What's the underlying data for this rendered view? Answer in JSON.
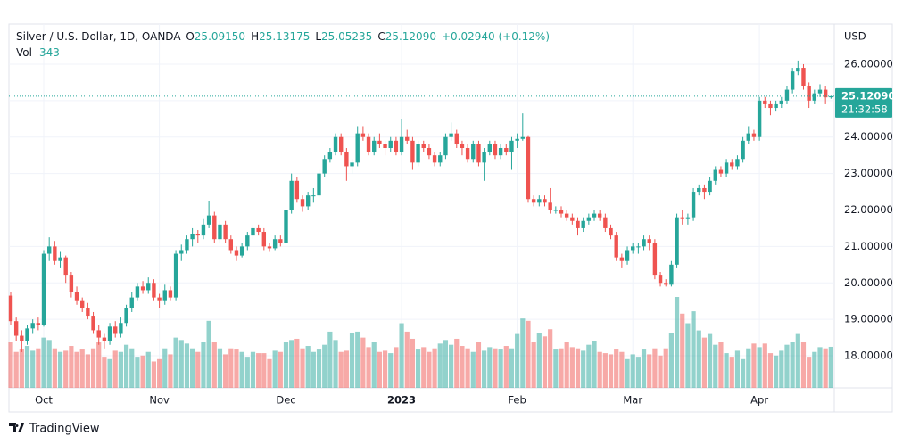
{
  "chart_data": {
    "type": "candlestick",
    "header": {
      "title": "Silver / U.S. Dollar, 1D, OANDA",
      "o_label": "O",
      "open": "25.09150",
      "h_label": "H",
      "high": "25.13175",
      "l_label": "L",
      "low": "25.05235",
      "c_label": "C",
      "close": "25.12090",
      "change": "+0.02940 (+0.12%)",
      "vol_label": "Vol"
    },
    "price_axis_label": "USD",
    "last_price": {
      "value": 25.1209,
      "label": "25.12090"
    },
    "countdown": "21:32:58",
    "brand": "TradingView",
    "up_color": "#26a69a",
    "down_color": "#ef5350",
    "grid": true,
    "ylim": [
      17.12,
      27.1
    ],
    "yticks": [
      {
        "value": 18,
        "label": "18.00000"
      },
      {
        "value": 19,
        "label": "19.00000"
      },
      {
        "value": 20,
        "label": "20.00000"
      },
      {
        "value": 21,
        "label": "21.00000"
      },
      {
        "value": 22,
        "label": "22.00000"
      },
      {
        "value": 23,
        "label": "23.00000"
      },
      {
        "value": 24,
        "label": "24.00000"
      },
      {
        "value": 25,
        "label": "25.00000"
      },
      {
        "value": 26,
        "label": "26.00000"
      }
    ],
    "categories": [
      null,
      null,
      null,
      null,
      null,
      null,
      "Oct",
      null,
      null,
      null,
      null,
      null,
      null,
      null,
      null,
      null,
      null,
      null,
      null,
      null,
      null,
      null,
      null,
      null,
      null,
      null,
      null,
      "Nov",
      null,
      null,
      null,
      null,
      null,
      null,
      null,
      null,
      null,
      null,
      null,
      null,
      null,
      null,
      null,
      null,
      null,
      null,
      null,
      null,
      null,
      null,
      "Dec",
      null,
      null,
      null,
      null,
      null,
      null,
      null,
      null,
      null,
      null,
      null,
      null,
      null,
      null,
      null,
      null,
      null,
      null,
      null,
      null,
      "2023",
      null,
      null,
      null,
      null,
      null,
      null,
      null,
      null,
      null,
      null,
      null,
      null,
      null,
      null,
      null,
      null,
      null,
      null,
      null,
      null,
      "Feb",
      null,
      null,
      null,
      null,
      null,
      null,
      null,
      null,
      null,
      null,
      null,
      null,
      null,
      null,
      null,
      null,
      null,
      null,
      null,
      null,
      "Mar",
      null,
      null,
      null,
      null,
      null,
      null,
      null,
      null,
      null,
      null,
      null,
      null,
      null,
      null,
      null,
      null,
      null,
      null,
      null,
      null,
      null,
      null,
      "Apr",
      null,
      null,
      null,
      null,
      null,
      null,
      null,
      null,
      null,
      null,
      null,
      null,
      null
    ],
    "ohlc": [
      [
        19.65,
        19.75,
        18.85,
        18.95
      ],
      [
        18.95,
        19.05,
        18.4,
        18.55
      ],
      [
        18.55,
        18.7,
        18.1,
        18.4
      ],
      [
        18.4,
        18.85,
        18.3,
        18.75
      ],
      [
        18.75,
        19.0,
        18.6,
        18.9
      ],
      [
        18.9,
        19.05,
        18.7,
        18.85
      ],
      [
        18.85,
        20.9,
        18.8,
        20.8
      ],
      [
        20.8,
        21.25,
        20.6,
        21.0
      ],
      [
        21.0,
        21.15,
        20.5,
        20.6
      ],
      [
        20.6,
        20.85,
        20.4,
        20.7
      ],
      [
        20.7,
        20.75,
        20.0,
        20.2
      ],
      [
        20.2,
        20.3,
        19.6,
        19.75
      ],
      [
        19.75,
        19.9,
        19.4,
        19.5
      ],
      [
        19.5,
        19.6,
        19.2,
        19.3
      ],
      [
        19.3,
        19.45,
        19.0,
        19.1
      ],
      [
        19.1,
        19.2,
        18.6,
        18.7
      ],
      [
        18.7,
        18.85,
        18.3,
        18.5
      ],
      [
        18.5,
        18.6,
        18.2,
        18.4
      ],
      [
        18.4,
        18.9,
        18.3,
        18.8
      ],
      [
        18.8,
        18.95,
        18.5,
        18.6
      ],
      [
        18.6,
        19.05,
        18.5,
        18.9
      ],
      [
        18.9,
        19.4,
        18.8,
        19.3
      ],
      [
        19.3,
        19.75,
        19.2,
        19.6
      ],
      [
        19.6,
        20.0,
        19.5,
        19.9
      ],
      [
        19.9,
        20.05,
        19.7,
        19.8
      ],
      [
        19.8,
        20.15,
        19.7,
        20.0
      ],
      [
        20.0,
        20.1,
        19.5,
        19.6
      ],
      [
        19.6,
        19.7,
        19.3,
        19.5
      ],
      [
        19.5,
        19.95,
        19.4,
        19.8
      ],
      [
        19.8,
        19.9,
        19.5,
        19.6
      ],
      [
        19.6,
        20.9,
        19.5,
        20.8
      ],
      [
        20.8,
        21.05,
        20.6,
        20.9
      ],
      [
        20.9,
        21.3,
        20.8,
        21.2
      ],
      [
        21.2,
        21.5,
        21.0,
        21.35
      ],
      [
        21.35,
        21.45,
        21.1,
        21.3
      ],
      [
        21.3,
        21.75,
        21.2,
        21.6
      ],
      [
        21.6,
        22.25,
        21.5,
        21.85
      ],
      [
        21.85,
        21.95,
        21.1,
        21.2
      ],
      [
        21.2,
        21.7,
        21.1,
        21.6
      ],
      [
        21.6,
        21.7,
        21.1,
        21.2
      ],
      [
        21.2,
        21.3,
        20.8,
        20.9
      ],
      [
        20.9,
        21.0,
        20.6,
        20.75
      ],
      [
        20.75,
        21.1,
        20.7,
        21.0
      ],
      [
        21.0,
        21.4,
        20.9,
        21.3
      ],
      [
        21.3,
        21.6,
        21.2,
        21.5
      ],
      [
        21.5,
        21.6,
        21.3,
        21.4
      ],
      [
        21.4,
        21.5,
        20.9,
        21.0
      ],
      [
        21.0,
        21.1,
        20.85,
        20.95
      ],
      [
        20.95,
        21.3,
        20.9,
        21.2
      ],
      [
        21.2,
        21.3,
        21.0,
        21.1
      ],
      [
        21.1,
        22.1,
        21.05,
        22.0
      ],
      [
        22.0,
        23.0,
        21.9,
        22.8
      ],
      [
        22.8,
        22.9,
        22.2,
        22.3
      ],
      [
        22.3,
        22.4,
        21.95,
        22.1
      ],
      [
        22.1,
        22.5,
        22.0,
        22.4
      ],
      [
        22.4,
        22.6,
        22.2,
        22.4
      ],
      [
        22.4,
        23.1,
        22.3,
        23.0
      ],
      [
        23.0,
        23.5,
        22.9,
        23.4
      ],
      [
        23.4,
        23.7,
        23.3,
        23.6
      ],
      [
        23.6,
        24.1,
        23.5,
        24.0
      ],
      [
        24.0,
        24.1,
        23.5,
        23.6
      ],
      [
        23.6,
        23.7,
        22.8,
        23.2
      ],
      [
        23.2,
        23.4,
        23.0,
        23.3
      ],
      [
        23.3,
        24.3,
        23.2,
        24.1
      ],
      [
        24.1,
        24.3,
        23.9,
        24.0
      ],
      [
        24.0,
        24.1,
        23.5,
        23.6
      ],
      [
        23.6,
        24.0,
        23.5,
        23.9
      ],
      [
        23.9,
        24.1,
        23.7,
        23.8
      ],
      [
        23.8,
        23.9,
        23.5,
        23.7
      ],
      [
        23.7,
        24.0,
        23.6,
        23.9
      ],
      [
        23.9,
        24.0,
        23.5,
        23.6
      ],
      [
        23.6,
        24.5,
        23.5,
        24.0
      ],
      [
        24.0,
        24.2,
        23.8,
        23.9
      ],
      [
        23.9,
        24.0,
        23.1,
        23.3
      ],
      [
        23.3,
        23.9,
        23.2,
        23.8
      ],
      [
        23.8,
        23.9,
        23.6,
        23.7
      ],
      [
        23.7,
        23.8,
        23.4,
        23.5
      ],
      [
        23.5,
        23.6,
        23.2,
        23.3
      ],
      [
        23.3,
        23.6,
        23.2,
        23.5
      ],
      [
        23.5,
        24.1,
        23.4,
        24.0
      ],
      [
        24.0,
        24.4,
        23.9,
        24.1
      ],
      [
        24.1,
        24.2,
        23.7,
        23.8
      ],
      [
        23.8,
        23.9,
        23.5,
        23.7
      ],
      [
        23.7,
        23.8,
        23.3,
        23.4
      ],
      [
        23.4,
        23.9,
        23.3,
        23.8
      ],
      [
        23.8,
        23.9,
        23.2,
        23.3
      ],
      [
        23.3,
        23.7,
        22.8,
        23.6
      ],
      [
        23.6,
        23.9,
        23.5,
        23.8
      ],
      [
        23.8,
        23.9,
        23.4,
        23.5
      ],
      [
        23.5,
        23.8,
        23.4,
        23.7
      ],
      [
        23.7,
        23.8,
        23.5,
        23.6
      ],
      [
        23.6,
        24.0,
        23.1,
        23.9
      ],
      [
        23.9,
        24.1,
        23.7,
        23.95
      ],
      [
        23.95,
        24.65,
        23.9,
        24.0
      ],
      [
        24.0,
        24.05,
        22.2,
        22.3
      ],
      [
        22.3,
        22.4,
        22.1,
        22.2
      ],
      [
        22.2,
        22.4,
        22.1,
        22.3
      ],
      [
        22.3,
        22.4,
        22.1,
        22.2
      ],
      [
        22.2,
        22.6,
        21.9,
        22.0
      ],
      [
        22.0,
        22.1,
        21.9,
        22.0
      ],
      [
        22.0,
        22.1,
        21.8,
        21.9
      ],
      [
        21.9,
        22.0,
        21.7,
        21.8
      ],
      [
        21.8,
        21.9,
        21.6,
        21.7
      ],
      [
        21.7,
        21.8,
        21.3,
        21.5
      ],
      [
        21.5,
        21.8,
        21.4,
        21.7
      ],
      [
        21.7,
        21.9,
        21.6,
        21.8
      ],
      [
        21.8,
        22.0,
        21.7,
        21.9
      ],
      [
        21.9,
        22.0,
        21.7,
        21.8
      ],
      [
        21.8,
        21.9,
        21.4,
        21.5
      ],
      [
        21.5,
        21.6,
        21.2,
        21.3
      ],
      [
        21.3,
        21.4,
        20.6,
        20.7
      ],
      [
        20.7,
        20.8,
        20.4,
        20.6
      ],
      [
        20.6,
        21.0,
        20.5,
        20.9
      ],
      [
        20.9,
        21.1,
        20.8,
        21.0
      ],
      [
        21.0,
        21.1,
        20.8,
        21.0
      ],
      [
        21.0,
        21.3,
        20.9,
        21.2
      ],
      [
        21.2,
        21.3,
        20.9,
        21.1
      ],
      [
        21.1,
        21.2,
        20.1,
        20.2
      ],
      [
        20.2,
        20.3,
        19.9,
        20.0
      ],
      [
        20.0,
        20.1,
        19.9,
        19.95
      ],
      [
        19.95,
        20.6,
        19.9,
        20.5
      ],
      [
        20.5,
        21.9,
        20.4,
        21.8
      ],
      [
        21.8,
        22.0,
        21.6,
        21.75
      ],
      [
        21.75,
        21.9,
        21.6,
        21.8
      ],
      [
        21.8,
        22.6,
        21.7,
        22.5
      ],
      [
        22.5,
        22.7,
        22.4,
        22.6
      ],
      [
        22.6,
        22.7,
        22.3,
        22.5
      ],
      [
        22.5,
        22.9,
        22.4,
        22.8
      ],
      [
        22.8,
        23.2,
        22.7,
        23.1
      ],
      [
        23.1,
        23.2,
        22.9,
        23.0
      ],
      [
        23.0,
        23.4,
        22.9,
        23.3
      ],
      [
        23.3,
        23.4,
        23.1,
        23.2
      ],
      [
        23.2,
        23.5,
        23.1,
        23.4
      ],
      [
        23.4,
        24.0,
        23.3,
        23.9
      ],
      [
        23.9,
        24.3,
        23.8,
        24.1
      ],
      [
        24.1,
        24.2,
        23.9,
        24.0
      ],
      [
        24.0,
        25.1,
        23.9,
        25.0
      ],
      [
        25.0,
        25.1,
        24.8,
        24.9
      ],
      [
        24.9,
        25.0,
        24.6,
        24.8
      ],
      [
        24.8,
        25.0,
        24.7,
        24.9
      ],
      [
        24.9,
        25.1,
        24.8,
        25.0
      ],
      [
        25.0,
        25.4,
        24.9,
        25.3
      ],
      [
        25.3,
        25.9,
        25.2,
        25.8
      ],
      [
        25.8,
        26.1,
        25.7,
        25.9
      ],
      [
        25.9,
        26.0,
        25.3,
        25.4
      ],
      [
        25.4,
        25.5,
        24.8,
        25.0
      ],
      [
        25.0,
        25.3,
        24.9,
        25.2
      ],
      [
        25.2,
        25.45,
        25.1,
        25.3
      ],
      [
        25.3,
        25.4,
        24.9,
        25.09
      ],
      [
        25.0915,
        25.13175,
        25.05235,
        25.1209
      ]
    ],
    "volume": [
      380,
      300,
      320,
      350,
      310,
      330,
      420,
      400,
      330,
      300,
      310,
      350,
      300,
      320,
      280,
      330,
      380,
      260,
      240,
      310,
      300,
      360,
      330,
      260,
      270,
      300,
      220,
      240,
      330,
      280,
      420,
      400,
      370,
      330,
      300,
      380,
      560,
      380,
      330,
      280,
      330,
      320,
      300,
      260,
      300,
      290,
      290,
      240,
      310,
      300,
      380,
      400,
      410,
      330,
      350,
      300,
      320,
      360,
      470,
      400,
      300,
      310,
      460,
      470,
      420,
      340,
      380,
      300,
      310,
      290,
      340,
      540,
      470,
      410,
      320,
      340,
      300,
      330,
      370,
      400,
      360,
      410,
      350,
      330,
      300,
      380,
      310,
      340,
      330,
      320,
      350,
      330,
      450,
      580,
      560,
      380,
      460,
      430,
      490,
      320,
      330,
      380,
      340,
      330,
      310,
      360,
      390,
      300,
      290,
      280,
      320,
      300,
      240,
      280,
      260,
      320,
      280,
      330,
      270,
      330,
      460,
      760,
      620,
      540,
      640,
      480,
      420,
      450,
      360,
      380,
      290,
      260,
      310,
      240,
      330,
      370,
      340,
      370,
      290,
      270,
      310,
      360,
      380,
      450,
      380,
      260,
      300,
      340,
      330,
      343
    ]
  }
}
